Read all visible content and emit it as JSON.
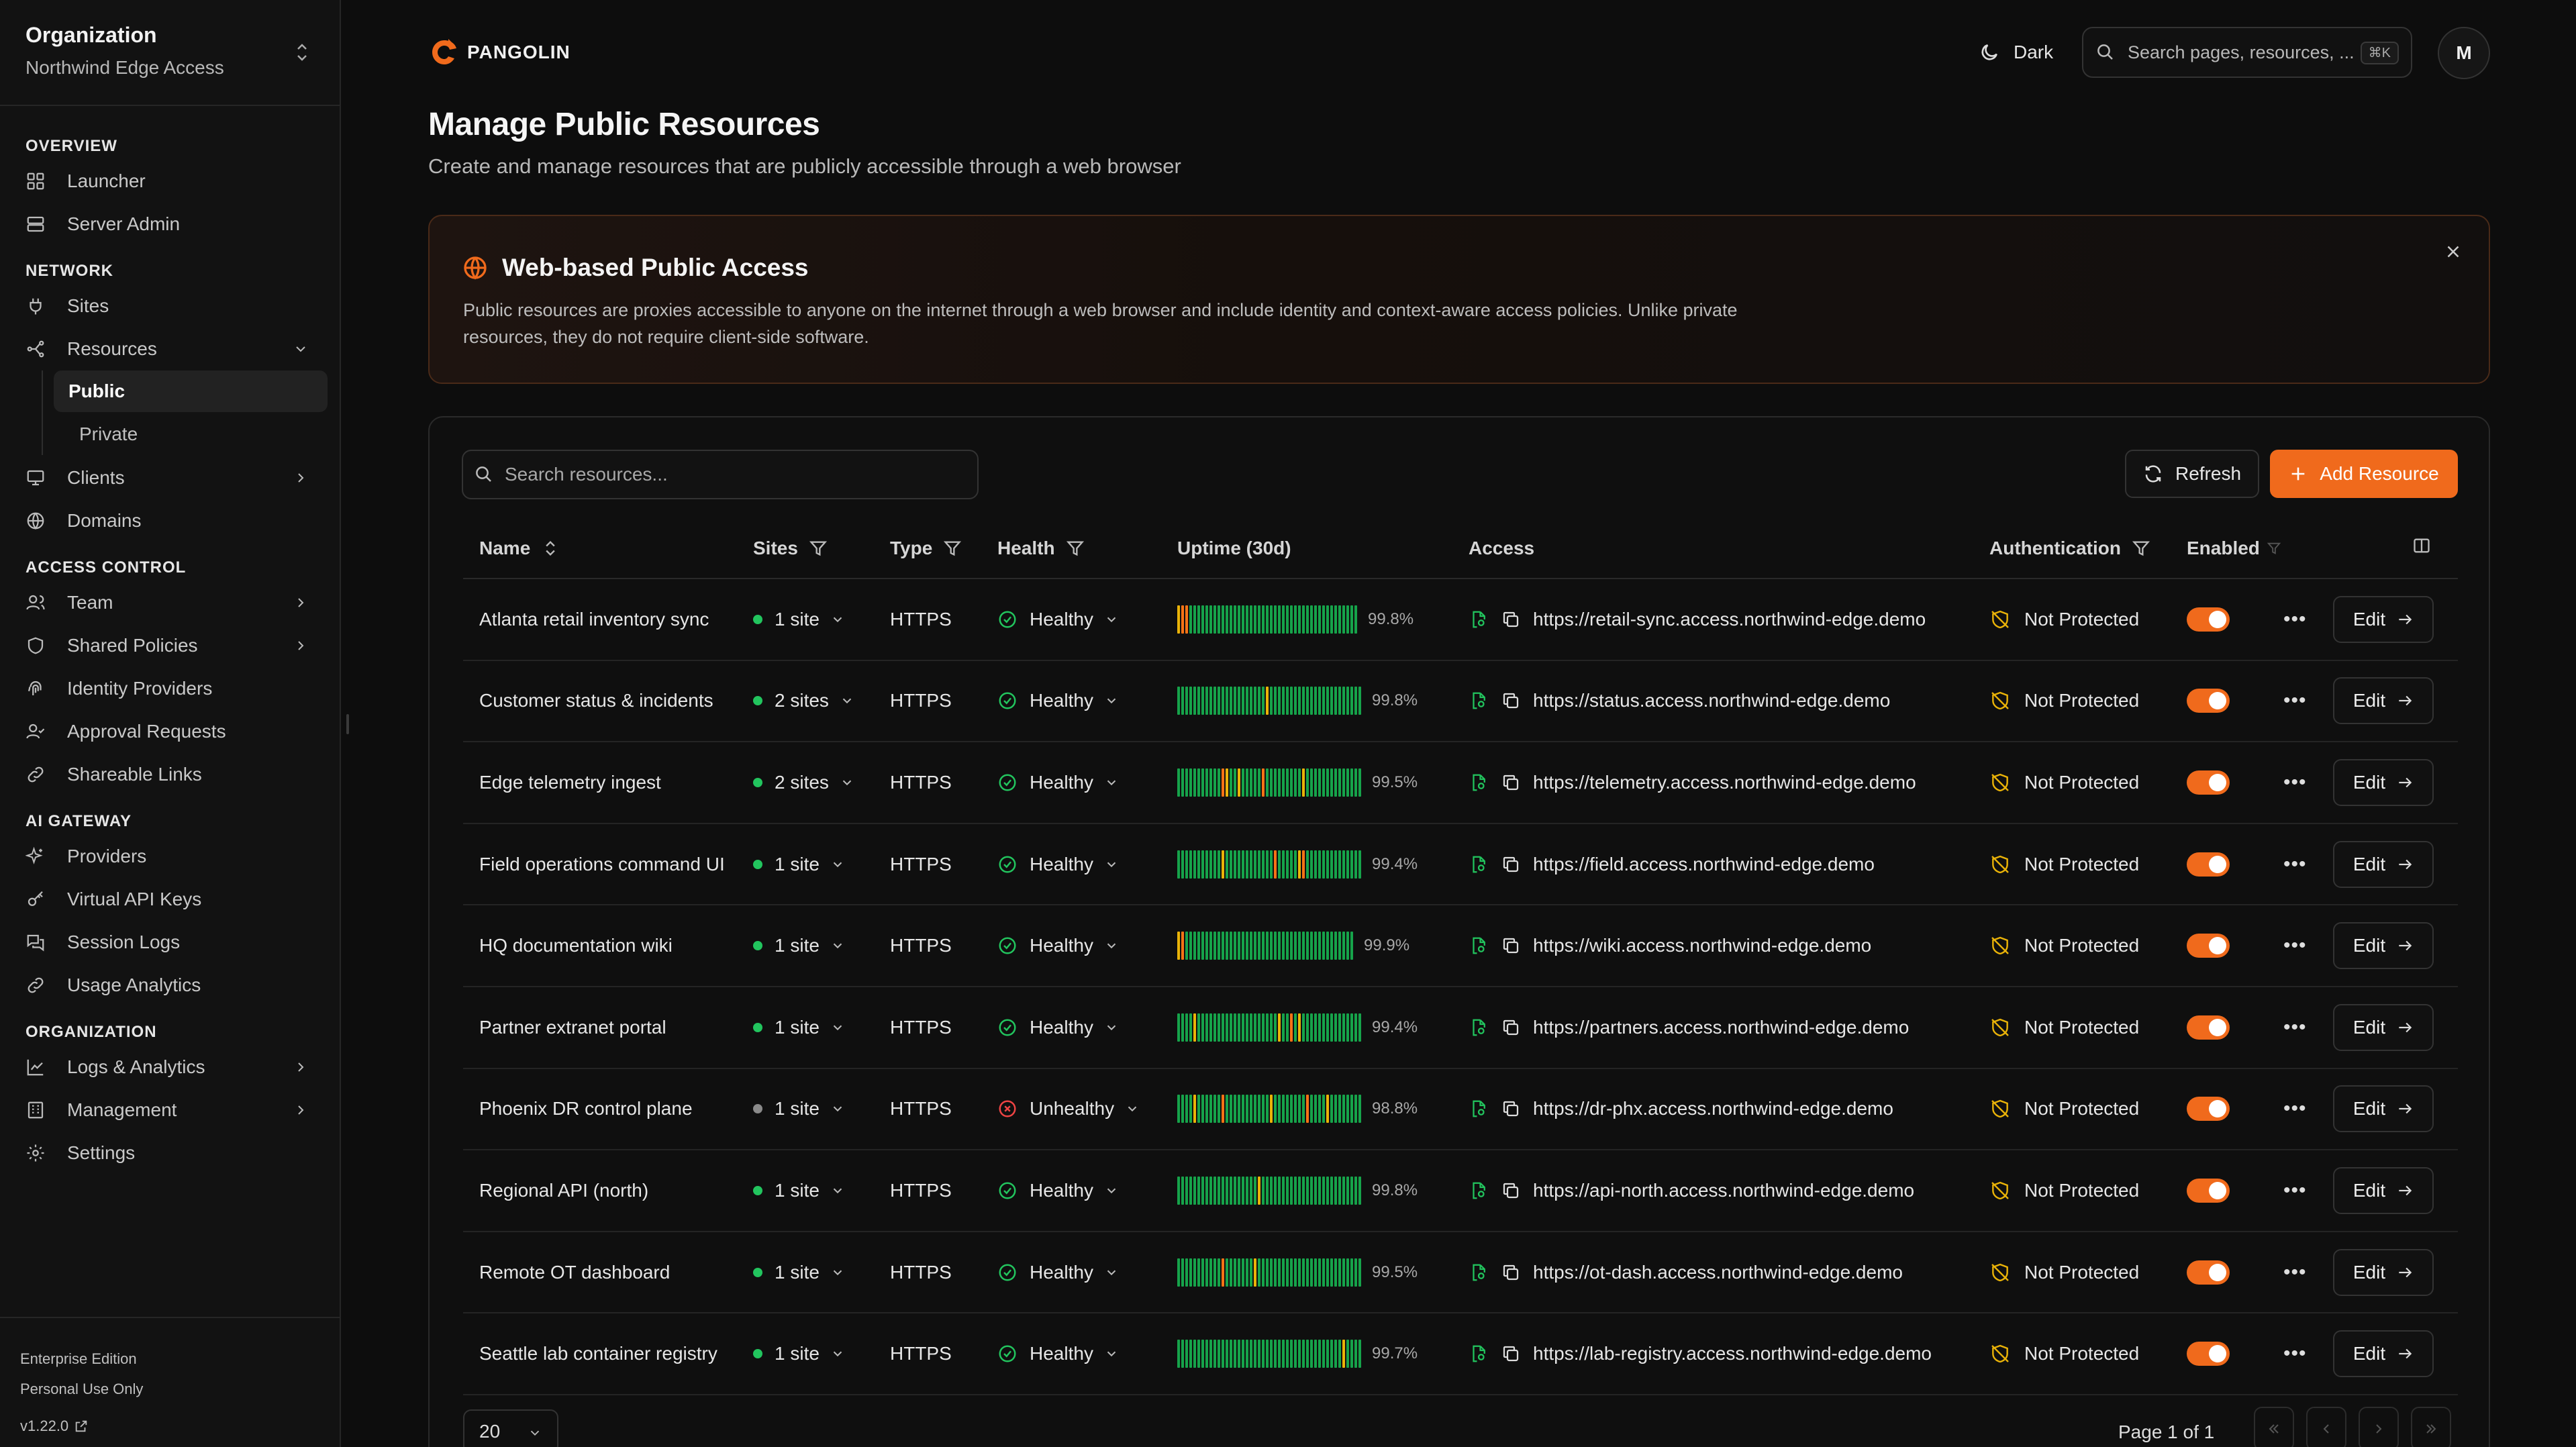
{
  "org": {
    "label": "Organization",
    "name": "Northwind Edge Access"
  },
  "nav": {
    "overview": {
      "title": "OVERVIEW",
      "launcher": "Launcher",
      "server_admin": "Server Admin"
    },
    "network": {
      "title": "NETWORK",
      "sites": "Sites",
      "resources": "Resources",
      "public": "Public",
      "private": "Private",
      "clients": "Clients",
      "domains": "Domains"
    },
    "access_control": {
      "title": "ACCESS CONTROL",
      "team": "Team",
      "shared_policies": "Shared Policies",
      "identity_providers": "Identity Providers",
      "approval_requests": "Approval Requests",
      "shareable_links": "Shareable Links"
    },
    "ai_gateway": {
      "title": "AI GATEWAY",
      "providers": "Providers",
      "virtual_api_keys": "Virtual API Keys",
      "session_logs": "Session Logs",
      "usage_analytics": "Usage Analytics"
    },
    "organization": {
      "title": "ORGANIZATION",
      "logs": "Logs & Analytics",
      "management": "Management",
      "settings": "Settings"
    }
  },
  "footer": {
    "edition": "Enterprise Edition",
    "license": "Personal Use Only",
    "version": "v1.22.0"
  },
  "topbar": {
    "brand": "PANGOLIN",
    "theme": "Dark",
    "search_placeholder": "Search pages, resources, ...",
    "shortcut": "⌘K",
    "avatar": "M"
  },
  "page": {
    "title": "Manage Public Resources",
    "subtitle": "Create and manage resources that are publicly accessible through a web browser"
  },
  "banner": {
    "title": "Web-based Public Access",
    "text": "Public resources are proxies accessible to anyone on the internet through a web browser and include identity and context-aware access policies. Unlike private resources, they do not require client-side software."
  },
  "toolbar": {
    "search_placeholder": "Search resources...",
    "refresh": "Refresh",
    "add": "Add Resource"
  },
  "columns": {
    "name": "Name",
    "sites": "Sites",
    "type": "Type",
    "health": "Health",
    "uptime": "Uptime (30d)",
    "access": "Access",
    "auth": "Authentication",
    "enabled": "Enabled"
  },
  "colors": {
    "accent": "#f06a1c",
    "healthy": "#22c55e",
    "unhealthy": "#ef4444",
    "bar_green": "#16a34a",
    "bar_yellow": "#eab308",
    "bar_orange": "#f97316"
  },
  "rows": [
    {
      "name": "Atlanta retail inventory sync",
      "sites": "1 site",
      "site_status": "online",
      "type": "HTTPS",
      "health": "Healthy",
      "uptime": "99.8%",
      "url": "https://retail-sync.access.northwind-edge.demo",
      "auth": "Not Protected",
      "edit": "Edit",
      "bars": "YOOGGGGGGGGGGGGGGGGGGGGGGGGGGGGGGGGGGGGGGGGGG"
    },
    {
      "name": "Customer status & incidents",
      "sites": "2 sites",
      "site_status": "online",
      "type": "HTTPS",
      "health": "Healthy",
      "uptime": "99.8%",
      "url": "https://status.access.northwind-edge.demo",
      "auth": "Not Protected",
      "edit": "Edit",
      "bars": "GGGGGGGGGGGGGGGGGGGGGGYGGGGGGGGGGGGGGGGGGGGGGG"
    },
    {
      "name": "Edge telemetry ingest",
      "sites": "2 sites",
      "site_status": "online",
      "type": "HTTPS",
      "health": "Healthy",
      "uptime": "99.5%",
      "url": "https://telemetry.access.northwind-edge.demo",
      "auth": "Not Protected",
      "edit": "Edit",
      "bars": "GGGGGGGGGGGOYGGYGGGGGOGGGGGGGGGYGGGGGGGGGGGGGG"
    },
    {
      "name": "Field operations command UI",
      "sites": "1 site",
      "site_status": "online",
      "type": "HTTPS",
      "health": "Healthy",
      "uptime": "99.4%",
      "url": "https://field.access.northwind-edge.demo",
      "auth": "Not Protected",
      "edit": "Edit",
      "bars": "GGGGGGGGGGGYGGGGGGGGGGGGOGGGGGYOGGGGGGGGGGGGGG"
    },
    {
      "name": "HQ documentation wiki",
      "sites": "1 site",
      "site_status": "online",
      "type": "HTTPS",
      "health": "Healthy",
      "uptime": "99.9%",
      "url": "https://wiki.access.northwind-edge.demo",
      "auth": "Not Protected",
      "edit": "Edit",
      "bars": "YOGGGGGGGGGGGGGGGGGGGGGGGGGGGGGGGGGGGGGGGGGG"
    },
    {
      "name": "Partner extranet portal",
      "sites": "1 site",
      "site_status": "online",
      "type": "HTTPS",
      "health": "Healthy",
      "uptime": "99.4%",
      "url": "https://partners.access.northwind-edge.demo",
      "auth": "Not Protected",
      "edit": "Edit",
      "bars": "GGGGYGGGGGGGGGGGGGGGGGGGGYGGOGYGGGGGGGGGGGGGGG"
    },
    {
      "name": "Phoenix DR control plane",
      "sites": "1 site",
      "site_status": "offline",
      "type": "HTTPS",
      "health": "Unhealthy",
      "uptime": "98.8%",
      "url": "https://dr-phx.access.northwind-edge.demo",
      "auth": "Not Protected",
      "edit": "Edit",
      "bars": "GGGGYGGGGGGOGGGGGGGGGGGYGGGGGGGGOGGGGYGGGGGGGG"
    },
    {
      "name": "Regional API (north)",
      "sites": "1 site",
      "site_status": "online",
      "type": "HTTPS",
      "health": "Healthy",
      "uptime": "99.8%",
      "url": "https://api-north.access.northwind-edge.demo",
      "auth": "Not Protected",
      "edit": "Edit",
      "bars": "GGGGGGGGGGGGGGGGGGGGYGGGGGGGGGGGGGGGGGGGGGGGGG"
    },
    {
      "name": "Remote OT dashboard",
      "sites": "1 site",
      "site_status": "online",
      "type": "HTTPS",
      "health": "Healthy",
      "uptime": "99.5%",
      "url": "https://ot-dash.access.northwind-edge.demo",
      "auth": "Not Protected",
      "edit": "Edit",
      "bars": "GGGGGGGGGGGOGGGGGGGYGGGGGGGGGGGGGGGGGGGGGGGGGG"
    },
    {
      "name": "Seattle lab container registry",
      "sites": "1 site",
      "site_status": "online",
      "type": "HTTPS",
      "health": "Healthy",
      "uptime": "99.7%",
      "url": "https://lab-registry.access.northwind-edge.demo",
      "auth": "Not Protected",
      "edit": "Edit",
      "bars": "GGGGGGGGGGGGGGGGGGGGGGGGGGGGGGGGGGGGGGGGGYGGGG"
    }
  ],
  "pagination": {
    "page_size": "20",
    "page_info": "Page 1 of 1"
  }
}
